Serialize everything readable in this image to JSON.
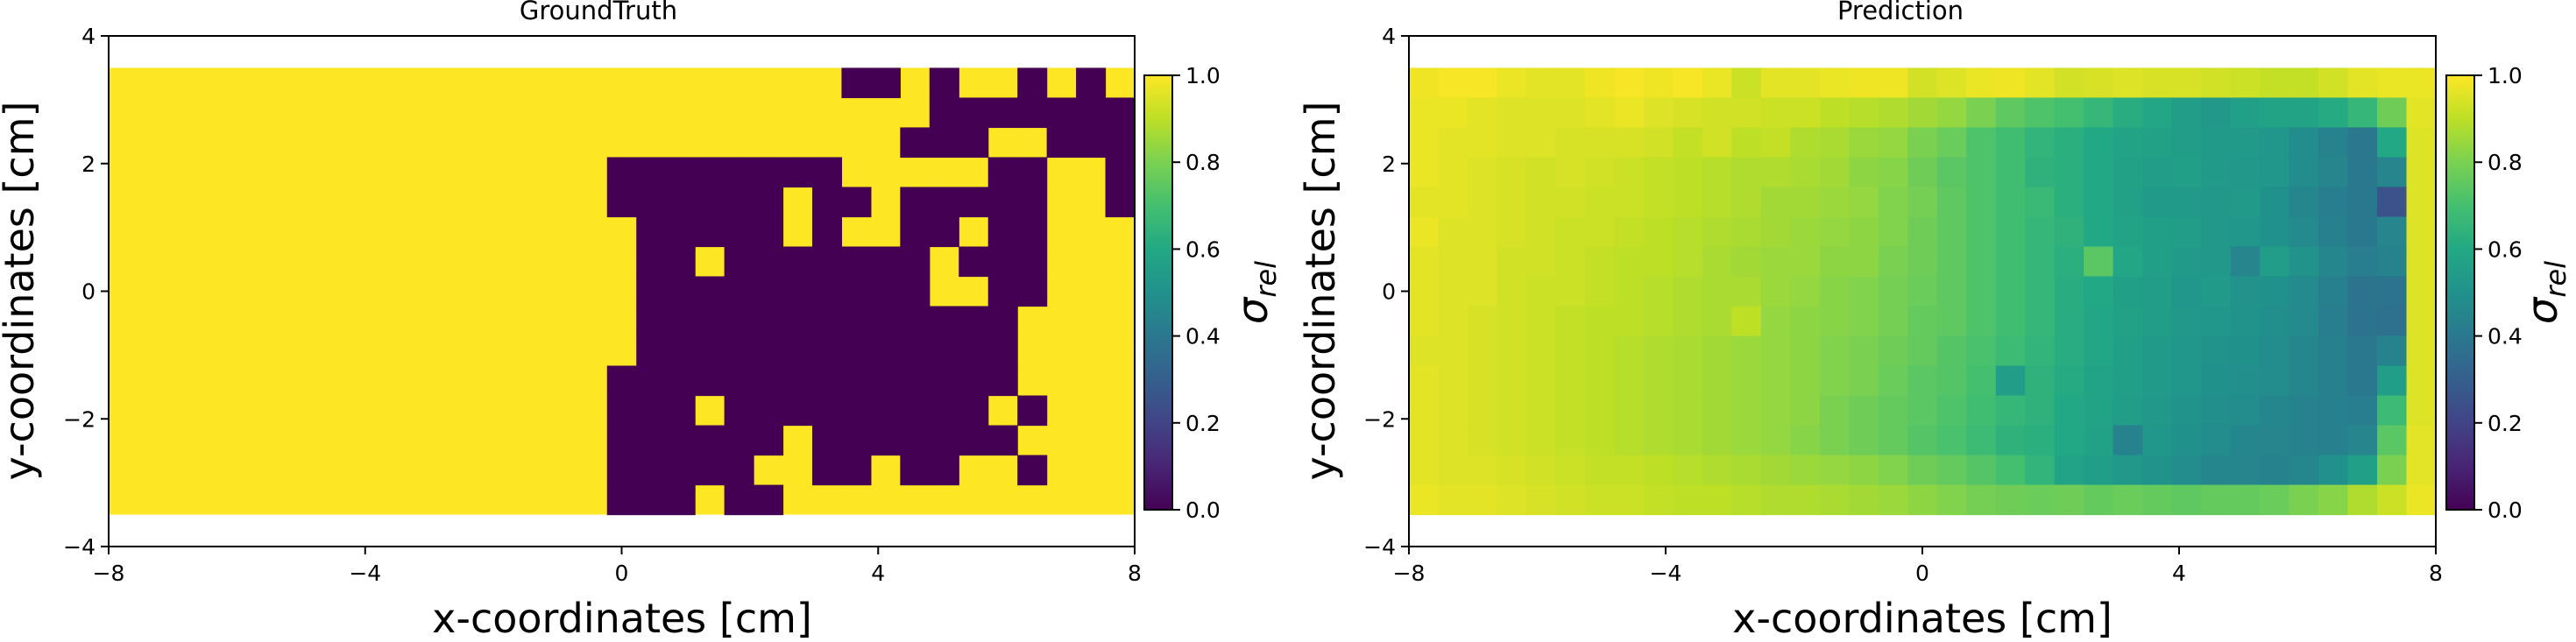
{
  "chart_data": [
    {
      "type": "heatmap",
      "title": "GroundTruth",
      "xlabel": "x-coordinates [cm]",
      "ylabel": "y-coordinates [cm]",
      "xlim": [
        -8,
        8
      ],
      "ylim": [
        -4,
        4
      ],
      "extent": [
        -8,
        8,
        -3.5,
        3.5
      ],
      "grid_cols": 35,
      "grid_rows": 15,
      "xticks": [
        -8,
        -4,
        0,
        4,
        8
      ],
      "yticks": [
        4,
        2,
        0,
        -2,
        -4
      ],
      "colormap": "viridis",
      "colorbar": {
        "label": "σ",
        "label_sub": "rel",
        "vmin": 0,
        "vmax": 1,
        "ticks": [
          "1.0",
          "0.8",
          "0.6",
          "0.4",
          "0.2",
          "0.0"
        ]
      },
      "background_value": 1.0,
      "cells_value_0": [
        [
          0,
          25
        ],
        [
          0,
          26
        ],
        [
          0,
          28
        ],
        [
          0,
          31
        ],
        [
          0,
          33
        ],
        [
          1,
          28
        ],
        [
          1,
          29
        ],
        [
          1,
          30
        ],
        [
          1,
          31
        ],
        [
          1,
          32
        ],
        [
          1,
          33
        ],
        [
          1,
          34
        ],
        [
          2,
          27
        ],
        [
          2,
          28
        ],
        [
          2,
          29
        ],
        [
          2,
          32
        ],
        [
          2,
          33
        ],
        [
          2,
          34
        ],
        [
          3,
          17
        ],
        [
          3,
          18
        ],
        [
          3,
          19
        ],
        [
          3,
          20
        ],
        [
          3,
          21
        ],
        [
          3,
          22
        ],
        [
          3,
          23
        ],
        [
          3,
          24
        ],
        [
          3,
          30
        ],
        [
          3,
          31
        ],
        [
          3,
          34
        ],
        [
          4,
          17
        ],
        [
          4,
          18
        ],
        [
          4,
          19
        ],
        [
          4,
          20
        ],
        [
          4,
          21
        ],
        [
          4,
          22
        ],
        [
          4,
          24
        ],
        [
          4,
          25
        ],
        [
          4,
          27
        ],
        [
          4,
          28
        ],
        [
          4,
          29
        ],
        [
          4,
          30
        ],
        [
          4,
          31
        ],
        [
          4,
          34
        ],
        [
          5,
          18
        ],
        [
          5,
          19
        ],
        [
          5,
          20
        ],
        [
          5,
          21
        ],
        [
          5,
          22
        ],
        [
          5,
          24
        ],
        [
          5,
          27
        ],
        [
          5,
          28
        ],
        [
          5,
          30
        ],
        [
          5,
          31
        ],
        [
          6,
          18
        ],
        [
          6,
          19
        ],
        [
          6,
          21
        ],
        [
          6,
          22
        ],
        [
          6,
          23
        ],
        [
          6,
          24
        ],
        [
          6,
          25
        ],
        [
          6,
          26
        ],
        [
          6,
          27
        ],
        [
          6,
          29
        ],
        [
          6,
          30
        ],
        [
          6,
          31
        ],
        [
          7,
          18
        ],
        [
          7,
          19
        ],
        [
          7,
          20
        ],
        [
          7,
          21
        ],
        [
          7,
          22
        ],
        [
          7,
          23
        ],
        [
          7,
          24
        ],
        [
          7,
          25
        ],
        [
          7,
          26
        ],
        [
          7,
          27
        ],
        [
          7,
          30
        ],
        [
          7,
          31
        ],
        [
          8,
          18
        ],
        [
          8,
          19
        ],
        [
          8,
          20
        ],
        [
          8,
          21
        ],
        [
          8,
          22
        ],
        [
          8,
          23
        ],
        [
          8,
          24
        ],
        [
          8,
          25
        ],
        [
          8,
          26
        ],
        [
          8,
          27
        ],
        [
          8,
          28
        ],
        [
          8,
          29
        ],
        [
          8,
          30
        ],
        [
          9,
          18
        ],
        [
          9,
          19
        ],
        [
          9,
          20
        ],
        [
          9,
          21
        ],
        [
          9,
          22
        ],
        [
          9,
          23
        ],
        [
          9,
          24
        ],
        [
          9,
          25
        ],
        [
          9,
          26
        ],
        [
          9,
          27
        ],
        [
          9,
          28
        ],
        [
          9,
          29
        ],
        [
          9,
          30
        ],
        [
          10,
          17
        ],
        [
          10,
          18
        ],
        [
          10,
          19
        ],
        [
          10,
          20
        ],
        [
          10,
          21
        ],
        [
          10,
          22
        ],
        [
          10,
          23
        ],
        [
          10,
          24
        ],
        [
          10,
          25
        ],
        [
          10,
          26
        ],
        [
          10,
          27
        ],
        [
          10,
          28
        ],
        [
          10,
          29
        ],
        [
          10,
          30
        ],
        [
          11,
          17
        ],
        [
          11,
          18
        ],
        [
          11,
          19
        ],
        [
          11,
          21
        ],
        [
          11,
          22
        ],
        [
          11,
          23
        ],
        [
          11,
          24
        ],
        [
          11,
          25
        ],
        [
          11,
          26
        ],
        [
          11,
          27
        ],
        [
          11,
          28
        ],
        [
          11,
          29
        ],
        [
          11,
          31
        ],
        [
          12,
          17
        ],
        [
          12,
          18
        ],
        [
          12,
          19
        ],
        [
          12,
          20
        ],
        [
          12,
          21
        ],
        [
          12,
          22
        ],
        [
          12,
          24
        ],
        [
          12,
          25
        ],
        [
          12,
          26
        ],
        [
          12,
          27
        ],
        [
          12,
          28
        ],
        [
          12,
          29
        ],
        [
          12,
          30
        ],
        [
          13,
          17
        ],
        [
          13,
          18
        ],
        [
          13,
          19
        ],
        [
          13,
          20
        ],
        [
          13,
          21
        ],
        [
          13,
          24
        ],
        [
          13,
          25
        ],
        [
          13,
          27
        ],
        [
          13,
          28
        ],
        [
          13,
          31
        ],
        [
          14,
          17
        ],
        [
          14,
          18
        ],
        [
          14,
          19
        ],
        [
          14,
          21
        ],
        [
          14,
          22
        ]
      ]
    },
    {
      "type": "heatmap",
      "title": "Prediction",
      "xlabel": "x-coordinates [cm]",
      "ylabel": "y-coordinates [cm]",
      "xlim": [
        -8,
        8
      ],
      "ylim": [
        -4,
        4
      ],
      "extent": [
        -8,
        8,
        -3.5,
        3.5
      ],
      "grid_cols": 35,
      "grid_rows": 15,
      "xticks": [
        -8,
        -4,
        0,
        4,
        8
      ],
      "yticks": [
        4,
        2,
        0,
        -2,
        -4
      ],
      "colormap": "viridis",
      "colorbar": {
        "label": "σ",
        "label_sub": "rel",
        "vmin": 0,
        "vmax": 1,
        "ticks": [
          "1.0",
          "0.8",
          "0.6",
          "0.4",
          "0.2",
          "0.0"
        ]
      },
      "values": [
        [
          0.98,
          0.99,
          0.99,
          0.97,
          0.96,
          0.96,
          0.98,
          0.99,
          0.98,
          0.99,
          0.97,
          0.92,
          0.96,
          0.96,
          0.97,
          0.98,
          0.98,
          0.93,
          0.95,
          0.97,
          0.98,
          0.96,
          0.93,
          0.94,
          0.95,
          0.94,
          0.94,
          0.93,
          0.92,
          0.91,
          0.91,
          0.93,
          0.96,
          0.97,
          0.97
        ],
        [
          0.97,
          0.97,
          0.96,
          0.95,
          0.95,
          0.95,
          0.96,
          0.97,
          0.95,
          0.94,
          0.93,
          0.93,
          0.92,
          0.92,
          0.9,
          0.89,
          0.88,
          0.86,
          0.84,
          0.8,
          0.75,
          0.72,
          0.7,
          0.66,
          0.62,
          0.59,
          0.55,
          0.53,
          0.56,
          0.58,
          0.58,
          0.61,
          0.66,
          0.78,
          0.96
        ],
        [
          0.97,
          0.96,
          0.96,
          0.95,
          0.95,
          0.94,
          0.94,
          0.94,
          0.93,
          0.91,
          0.93,
          0.9,
          0.91,
          0.88,
          0.87,
          0.85,
          0.84,
          0.8,
          0.77,
          0.72,
          0.69,
          0.65,
          0.63,
          0.6,
          0.58,
          0.57,
          0.55,
          0.54,
          0.54,
          0.52,
          0.48,
          0.44,
          0.4,
          0.6,
          0.95
        ],
        [
          0.97,
          0.96,
          0.95,
          0.94,
          0.93,
          0.94,
          0.93,
          0.92,
          0.91,
          0.9,
          0.89,
          0.88,
          0.88,
          0.87,
          0.86,
          0.83,
          0.82,
          0.78,
          0.74,
          0.72,
          0.69,
          0.64,
          0.63,
          0.6,
          0.57,
          0.55,
          0.56,
          0.54,
          0.53,
          0.52,
          0.48,
          0.45,
          0.4,
          0.45,
          0.95
        ],
        [
          0.96,
          0.96,
          0.95,
          0.94,
          0.93,
          0.93,
          0.92,
          0.92,
          0.91,
          0.9,
          0.89,
          0.88,
          0.86,
          0.86,
          0.85,
          0.84,
          0.81,
          0.79,
          0.75,
          0.72,
          0.69,
          0.67,
          0.63,
          0.6,
          0.57,
          0.54,
          0.54,
          0.53,
          0.54,
          0.5,
          0.46,
          0.42,
          0.4,
          0.25,
          0.95
        ],
        [
          0.97,
          0.95,
          0.95,
          0.94,
          0.93,
          0.92,
          0.92,
          0.91,
          0.9,
          0.89,
          0.88,
          0.87,
          0.86,
          0.85,
          0.84,
          0.83,
          0.81,
          0.78,
          0.75,
          0.72,
          0.69,
          0.66,
          0.64,
          0.6,
          0.58,
          0.56,
          0.55,
          0.53,
          0.52,
          0.5,
          0.47,
          0.43,
          0.4,
          0.45,
          0.95
        ],
        [
          0.96,
          0.95,
          0.95,
          0.93,
          0.93,
          0.92,
          0.91,
          0.9,
          0.9,
          0.89,
          0.87,
          0.86,
          0.85,
          0.85,
          0.83,
          0.83,
          0.8,
          0.78,
          0.75,
          0.72,
          0.69,
          0.66,
          0.63,
          0.74,
          0.59,
          0.56,
          0.54,
          0.53,
          0.45,
          0.55,
          0.51,
          0.46,
          0.42,
          0.44,
          0.95
        ],
        [
          0.96,
          0.95,
          0.95,
          0.93,
          0.92,
          0.92,
          0.91,
          0.9,
          0.89,
          0.88,
          0.87,
          0.87,
          0.85,
          0.84,
          0.82,
          0.81,
          0.79,
          0.77,
          0.75,
          0.72,
          0.69,
          0.66,
          0.62,
          0.6,
          0.56,
          0.55,
          0.52,
          0.54,
          0.51,
          0.5,
          0.47,
          0.43,
          0.38,
          0.38,
          0.95
        ],
        [
          0.96,
          0.95,
          0.94,
          0.93,
          0.92,
          0.91,
          0.9,
          0.9,
          0.89,
          0.88,
          0.87,
          0.9,
          0.84,
          0.83,
          0.82,
          0.81,
          0.79,
          0.76,
          0.75,
          0.72,
          0.69,
          0.66,
          0.62,
          0.59,
          0.57,
          0.55,
          0.53,
          0.52,
          0.51,
          0.49,
          0.47,
          0.42,
          0.38,
          0.37,
          0.95
        ],
        [
          0.95,
          0.95,
          0.94,
          0.93,
          0.92,
          0.91,
          0.9,
          0.89,
          0.88,
          0.87,
          0.86,
          0.85,
          0.84,
          0.83,
          0.81,
          0.8,
          0.78,
          0.76,
          0.73,
          0.71,
          0.68,
          0.65,
          0.62,
          0.59,
          0.56,
          0.54,
          0.52,
          0.51,
          0.5,
          0.48,
          0.46,
          0.43,
          0.4,
          0.44,
          0.95
        ],
        [
          0.96,
          0.95,
          0.94,
          0.93,
          0.92,
          0.91,
          0.9,
          0.89,
          0.88,
          0.87,
          0.86,
          0.85,
          0.84,
          0.83,
          0.81,
          0.8,
          0.77,
          0.74,
          0.73,
          0.7,
          0.55,
          0.64,
          0.61,
          0.58,
          0.56,
          0.54,
          0.52,
          0.5,
          0.49,
          0.48,
          0.46,
          0.43,
          0.4,
          0.55,
          0.95
        ],
        [
          0.96,
          0.95,
          0.94,
          0.93,
          0.92,
          0.91,
          0.9,
          0.89,
          0.88,
          0.87,
          0.86,
          0.85,
          0.84,
          0.83,
          0.8,
          0.78,
          0.76,
          0.74,
          0.72,
          0.69,
          0.66,
          0.64,
          0.6,
          0.58,
          0.55,
          0.53,
          0.51,
          0.49,
          0.48,
          0.46,
          0.44,
          0.43,
          0.42,
          0.68,
          0.95
        ],
        [
          0.96,
          0.95,
          0.94,
          0.93,
          0.92,
          0.91,
          0.9,
          0.89,
          0.88,
          0.87,
          0.86,
          0.85,
          0.84,
          0.82,
          0.8,
          0.78,
          0.76,
          0.73,
          0.71,
          0.68,
          0.64,
          0.63,
          0.6,
          0.57,
          0.44,
          0.52,
          0.5,
          0.48,
          0.46,
          0.45,
          0.44,
          0.43,
          0.45,
          0.74,
          0.96
        ],
        [
          0.96,
          0.95,
          0.95,
          0.94,
          0.93,
          0.92,
          0.91,
          0.91,
          0.9,
          0.89,
          0.88,
          0.87,
          0.86,
          0.85,
          0.84,
          0.83,
          0.81,
          0.78,
          0.76,
          0.73,
          0.7,
          0.65,
          0.58,
          0.55,
          0.53,
          0.51,
          0.48,
          0.46,
          0.45,
          0.44,
          0.46,
          0.5,
          0.56,
          0.8,
          0.96
        ],
        [
          0.97,
          0.96,
          0.96,
          0.95,
          0.94,
          0.93,
          0.92,
          0.92,
          0.91,
          0.9,
          0.9,
          0.89,
          0.88,
          0.88,
          0.87,
          0.86,
          0.85,
          0.83,
          0.81,
          0.79,
          0.78,
          0.77,
          0.78,
          0.76,
          0.77,
          0.76,
          0.75,
          0.76,
          0.76,
          0.77,
          0.8,
          0.82,
          0.88,
          0.92,
          0.97
        ]
      ]
    }
  ]
}
